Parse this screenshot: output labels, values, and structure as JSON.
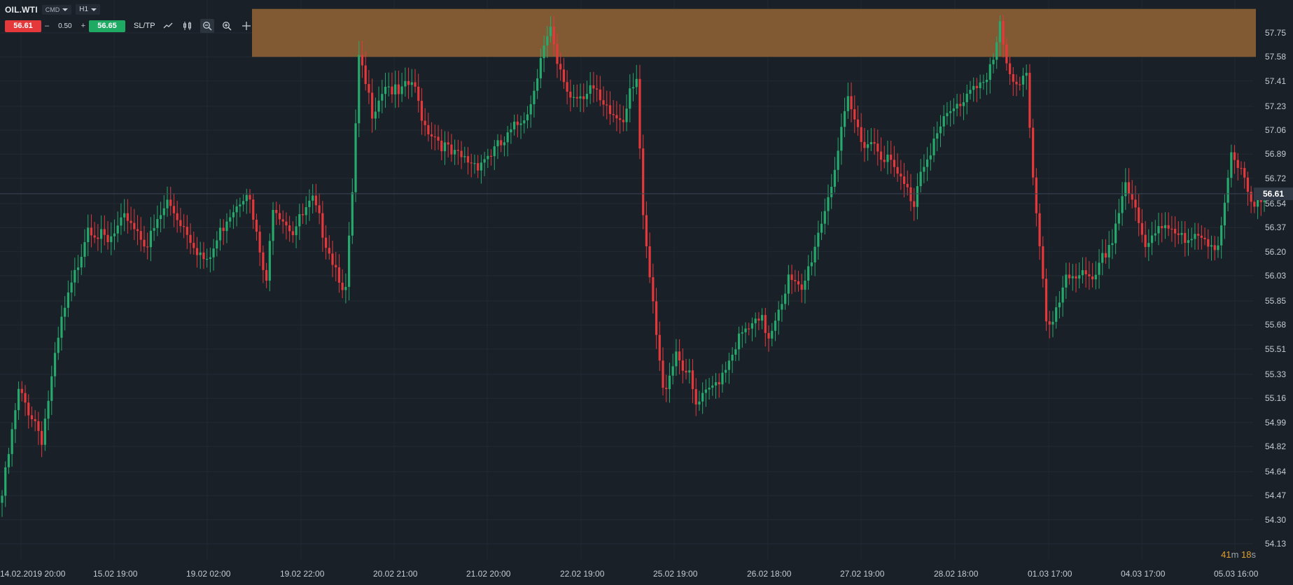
{
  "header": {
    "symbol": "OIL.WTI",
    "type_label": "CMD",
    "timeframe": "H1",
    "sell_price": "56.61",
    "buy_price": "56.65",
    "qty_minus": "–",
    "volume": "0.50",
    "qty_plus": "+",
    "sltp_label": "SL/TP"
  },
  "colors": {
    "up": "#26a96c",
    "down": "#e5383b",
    "zone": "#8a6034",
    "background": "#1a2028"
  },
  "price_axis": [
    "57.75",
    "57.58",
    "57.41",
    "57.23",
    "57.06",
    "56.89",
    "56.72",
    "56.54",
    "56.37",
    "56.20",
    "56.03",
    "55.85",
    "55.68",
    "55.51",
    "55.33",
    "55.16",
    "54.99",
    "54.82",
    "54.64",
    "54.47",
    "54.30",
    "54.13"
  ],
  "last_price": "56.61",
  "countdown": {
    "minutes": "41",
    "m_unit": "m",
    "seconds": "18",
    "s_unit": "s"
  },
  "date_axis": [
    "14.02.2019 20:00",
    "15.02 19:00",
    "19.02 02:00",
    "19.02 22:00",
    "20.02 21:00",
    "21.02 20:00",
    "22.02 19:00",
    "25.02 19:00",
    "26.02 18:00",
    "27.02 19:00",
    "28.02 18:00",
    "01.03 17:00",
    "04.03 17:00",
    "05.03 16:00"
  ],
  "chart_data": {
    "type": "candlestick",
    "instrument": "OIL.WTI",
    "timeframe": "H1",
    "resistance_zone": [
      57.58,
      57.92
    ],
    "last_price": 56.61,
    "ylim": [
      54.05,
      57.95
    ],
    "grid": true,
    "anchors": [
      [
        0,
        54.47
      ],
      [
        5,
        55.2
      ],
      [
        10,
        55.0
      ],
      [
        12,
        54.88
      ],
      [
        18,
        55.7
      ],
      [
        22,
        56.03
      ],
      [
        26,
        56.4
      ],
      [
        32,
        56.25
      ],
      [
        38,
        56.45
      ],
      [
        44,
        56.25
      ],
      [
        50,
        56.55
      ],
      [
        56,
        56.35
      ],
      [
        62,
        56.1
      ],
      [
        68,
        56.45
      ],
      [
        74,
        56.65
      ],
      [
        80,
        55.95
      ],
      [
        82,
        56.55
      ],
      [
        88,
        56.35
      ],
      [
        94,
        56.55
      ],
      [
        100,
        56.15
      ],
      [
        104,
        55.92
      ],
      [
        106,
        56.6
      ],
      [
        108,
        57.55
      ],
      [
        112,
        57.2
      ],
      [
        116,
        57.4
      ],
      [
        120,
        57.3
      ],
      [
        124,
        57.4
      ],
      [
        128,
        57.1
      ],
      [
        132,
        57.0
      ],
      [
        136,
        56.88
      ],
      [
        140,
        56.85
      ],
      [
        144,
        56.83
      ],
      [
        148,
        56.9
      ],
      [
        152,
        56.97
      ],
      [
        156,
        57.1
      ],
      [
        160,
        57.25
      ],
      [
        163,
        57.6
      ],
      [
        166,
        57.75
      ],
      [
        168,
        57.5
      ],
      [
        172,
        57.3
      ],
      [
        176,
        57.33
      ],
      [
        178,
        57.38
      ],
      [
        182,
        57.2
      ],
      [
        186,
        57.15
      ],
      [
        188,
        57.15
      ],
      [
        190,
        57.38
      ],
      [
        192,
        57.45
      ],
      [
        194,
        56.4
      ],
      [
        198,
        55.6
      ],
      [
        200,
        55.2
      ],
      [
        204,
        55.5
      ],
      [
        208,
        55.3
      ],
      [
        210,
        55.1
      ],
      [
        214,
        55.2
      ],
      [
        218,
        55.35
      ],
      [
        222,
        55.55
      ],
      [
        226,
        55.65
      ],
      [
        230,
        55.7
      ],
      [
        232,
        55.6
      ],
      [
        234,
        55.75
      ],
      [
        238,
        56.0
      ],
      [
        242,
        55.9
      ],
      [
        246,
        56.25
      ],
      [
        250,
        56.6
      ],
      [
        252,
        56.8
      ],
      [
        256,
        57.25
      ],
      [
        260,
        57.0
      ],
      [
        264,
        56.97
      ],
      [
        268,
        56.85
      ],
      [
        272,
        56.7
      ],
      [
        276,
        56.55
      ],
      [
        278,
        56.8
      ],
      [
        282,
        56.98
      ],
      [
        286,
        57.15
      ],
      [
        290,
        57.25
      ],
      [
        294,
        57.4
      ],
      [
        298,
        57.4
      ],
      [
        300,
        57.55
      ],
      [
        302,
        57.78
      ],
      [
        304,
        57.5
      ],
      [
        308,
        57.4
      ],
      [
        310,
        57.5
      ],
      [
        312,
        56.7
      ],
      [
        316,
        55.7
      ],
      [
        318,
        55.65
      ],
      [
        322,
        56.05
      ],
      [
        326,
        56.05
      ],
      [
        330,
        55.95
      ],
      [
        334,
        56.2
      ],
      [
        336,
        56.3
      ],
      [
        340,
        56.7
      ],
      [
        342,
        56.55
      ],
      [
        346,
        56.2
      ],
      [
        350,
        56.4
      ],
      [
        354,
        56.4
      ],
      [
        358,
        56.25
      ],
      [
        364,
        56.3
      ],
      [
        368,
        56.25
      ],
      [
        372,
        56.85
      ],
      [
        376,
        56.7
      ],
      [
        378,
        56.5
      ],
      [
        380,
        56.6
      ],
      [
        382,
        56.62
      ]
    ]
  }
}
